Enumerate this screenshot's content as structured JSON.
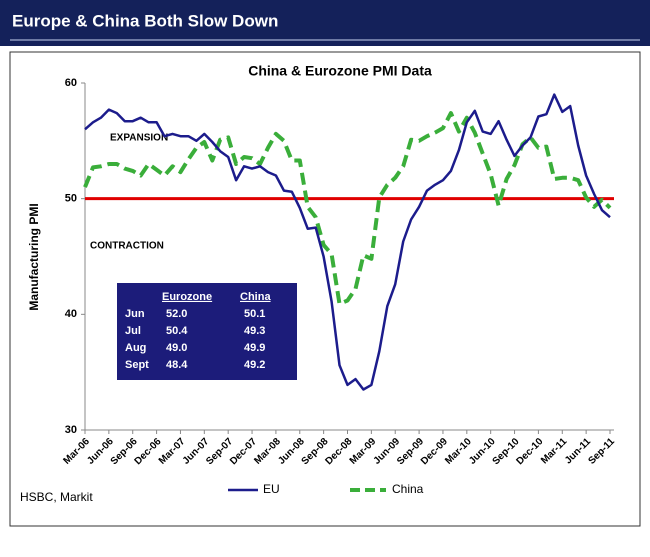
{
  "header": {
    "title": "Europe & China Both Slow Down"
  },
  "chart_data": {
    "type": "line",
    "title": "China & Eurozone PMI Data",
    "y_label": "Manufacturing PMI",
    "source": "HSBC, Markit",
    "categories": [
      "Mar-06",
      null,
      null,
      "Jun-06",
      null,
      null,
      "Sep-06",
      null,
      null,
      "Dec-06",
      null,
      null,
      "Mar-07",
      null,
      null,
      "Jun-07",
      null,
      null,
      "Sep-07",
      null,
      null,
      "Dec-07",
      null,
      null,
      "Mar-08",
      null,
      null,
      "Jun-08",
      null,
      null,
      "Sep-08",
      null,
      null,
      "Dec-08",
      null,
      null,
      "Mar-09",
      null,
      null,
      "Jun-09",
      null,
      null,
      "Sep-09",
      null,
      null,
      "Dec-09",
      null,
      null,
      "Mar-10",
      null,
      null,
      "Jun-10",
      null,
      null,
      "Sep-10",
      null,
      null,
      "Dec-10",
      null,
      null,
      "Mar-11",
      null,
      null,
      "Jun-11",
      null,
      null,
      "Sep-11"
    ],
    "series": [
      {
        "name": "EU",
        "color": "#1c1c8c",
        "dashed": false,
        "values": [
          56.0,
          56.6,
          57.0,
          57.7,
          57.4,
          56.7,
          56.7,
          57.0,
          56.6,
          56.6,
          55.4,
          55.6,
          55.4,
          55.4,
          55.0,
          55.6,
          54.9,
          54.1,
          53.6,
          51.6,
          52.8,
          52.6,
          52.8,
          52.3,
          52.0,
          50.7,
          50.6,
          49.2,
          47.4,
          47.5,
          45.0,
          41.1,
          35.6,
          33.9,
          34.4,
          33.5,
          33.9,
          36.8,
          40.7,
          42.6,
          46.3,
          48.2,
          49.3,
          50.7,
          51.2,
          51.6,
          52.4,
          54.2,
          56.6,
          57.6,
          55.8,
          55.6,
          56.7,
          55.1,
          53.7,
          54.6,
          55.3,
          57.1,
          57.3,
          59.0,
          57.5,
          58.0,
          54.6,
          52.0,
          50.4,
          49.0,
          48.4
        ]
      },
      {
        "name": "China",
        "color": "#3aae3a",
        "dashed": true,
        "values": [
          51.0,
          52.7,
          52.8,
          53.0,
          53.0,
          52.6,
          52.4,
          52.0,
          53.0,
          52.5,
          52.0,
          52.8,
          52.3,
          53.4,
          54.4,
          54.9,
          53.3,
          55.1,
          55.3,
          53.0,
          53.6,
          53.5,
          53.0,
          54.4,
          55.6,
          55.0,
          53.3,
          53.3,
          49.3,
          48.4,
          46.0,
          45.2,
          40.9,
          41.2,
          42.2,
          45.1,
          44.8,
          50.1,
          51.2,
          51.8,
          52.8,
          55.1,
          55.0,
          55.4,
          55.7,
          56.1,
          57.4,
          55.8,
          57.0,
          55.7,
          53.9,
          52.1,
          49.4,
          51.7,
          52.9,
          54.7,
          55.3,
          54.4,
          54.5,
          51.7,
          51.8,
          51.8,
          51.6,
          50.1,
          49.3,
          49.9,
          49.2
        ]
      }
    ],
    "ylim": [
      30,
      60
    ],
    "yticks": [
      30,
      40,
      50,
      60
    ],
    "grid": false,
    "reference_line": {
      "value": 50,
      "color": "#e00000"
    },
    "annotations": [
      "EXPANSION",
      "CONTRACTION"
    ],
    "legend": "bottom",
    "inset_table": {
      "headers": [
        "Eurozone",
        "China"
      ],
      "rows": [
        {
          "label": "Jun",
          "values": [
            "52.0",
            "50.1"
          ]
        },
        {
          "label": "Jul",
          "values": [
            "50.4",
            "49.3"
          ]
        },
        {
          "label": "Aug",
          "values": [
            "49.0",
            "49.9"
          ]
        },
        {
          "label": "Sept",
          "values": [
            "48.4",
            "49.2"
          ]
        }
      ]
    }
  }
}
